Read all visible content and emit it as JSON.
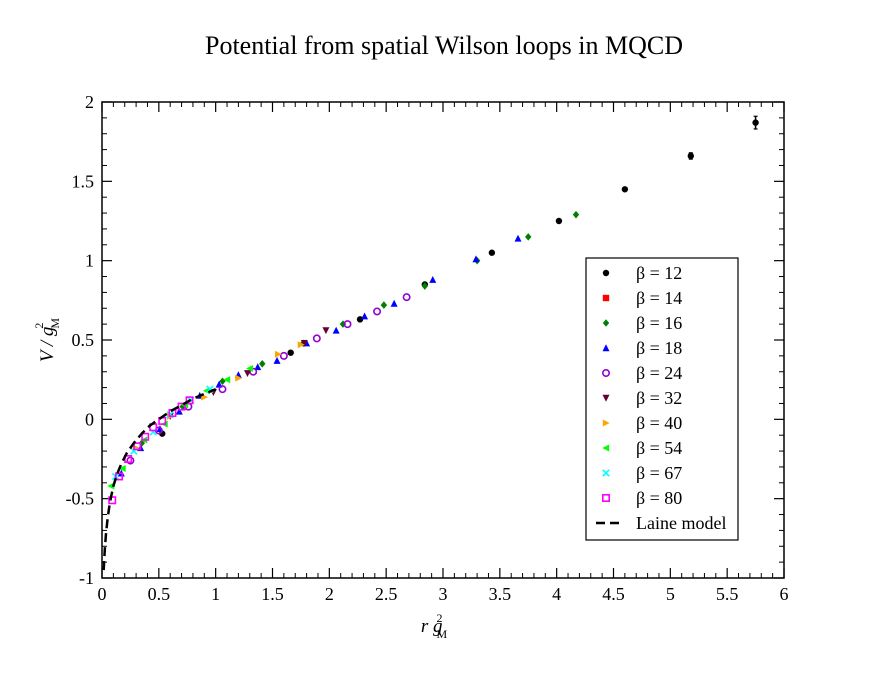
{
  "chart_data": {
    "type": "scatter",
    "title": "Potential from spatial Wilson loops in MQCD",
    "xlabel": {
      "main": "r g",
      "sup": "2",
      "sub": "M"
    },
    "ylabel": {
      "main": "V / g",
      "sup": "2",
      "sub": "M"
    },
    "xlim": [
      0,
      6
    ],
    "ylim": [
      -1,
      2
    ],
    "xticks": [
      0,
      0.5,
      1,
      1.5,
      2,
      2.5,
      3,
      3.5,
      4,
      4.5,
      5,
      5.5,
      6
    ],
    "xtick_labels": [
      "0",
      "0.5",
      "1",
      "1.5",
      "2",
      "2.5",
      "3",
      "3.5",
      "4",
      "4.5",
      "5",
      "5.5",
      "6"
    ],
    "yticks": [
      -1,
      -0.5,
      0,
      0.5,
      1,
      1.5,
      2
    ],
    "ytick_labels": [
      "-1",
      "-0.5",
      "0",
      "0.5",
      "1",
      "1.5",
      "2"
    ],
    "legend_position": "right",
    "series": [
      {
        "name": "β = 12",
        "marker": "circle",
        "color": "#000000",
        "points": [
          [
            0.53,
            -0.09
          ],
          [
            1.66,
            0.42
          ],
          [
            2.27,
            0.63
          ],
          [
            2.84,
            0.85
          ],
          [
            3.43,
            1.05
          ],
          [
            4.02,
            1.25
          ],
          [
            4.6,
            1.45
          ],
          [
            5.18,
            1.66
          ],
          [
            5.75,
            1.87
          ]
        ],
        "errors": [
          0,
          0,
          0,
          0,
          0,
          0,
          0,
          0.02,
          0.04
        ]
      },
      {
        "name": "β = 14",
        "marker": "square",
        "color": "#ff0000",
        "points": []
      },
      {
        "name": "β = 16",
        "marker": "diamond",
        "color": "#008000",
        "points": [
          [
            0.35,
            -0.15
          ],
          [
            0.71,
            0.08
          ],
          [
            1.06,
            0.24
          ],
          [
            1.41,
            0.35
          ],
          [
            1.77,
            0.48
          ],
          [
            2.12,
            0.6
          ],
          [
            2.48,
            0.72
          ],
          [
            2.84,
            0.84
          ],
          [
            3.3,
            1.0
          ],
          [
            3.75,
            1.15
          ],
          [
            4.17,
            1.29
          ]
        ]
      },
      {
        "name": "β = 18",
        "marker": "triangle-up",
        "color": "#0000ff",
        "points": [
          [
            0.17,
            -0.34
          ],
          [
            0.34,
            -0.18
          ],
          [
            0.51,
            -0.06
          ],
          [
            0.68,
            0.05
          ],
          [
            0.86,
            0.15
          ],
          [
            1.03,
            0.22
          ],
          [
            1.2,
            0.28
          ],
          [
            1.37,
            0.33
          ],
          [
            1.54,
            0.37
          ],
          [
            1.8,
            0.48
          ],
          [
            2.06,
            0.56
          ],
          [
            2.31,
            0.65
          ],
          [
            2.57,
            0.73
          ],
          [
            2.91,
            0.88
          ],
          [
            3.29,
            1.01
          ],
          [
            3.66,
            1.14
          ]
        ]
      },
      {
        "name": "β = 24",
        "marker": "circle-open",
        "color": "#9400d3",
        "points": [
          [
            0.25,
            -0.26
          ],
          [
            0.5,
            -0.07
          ],
          [
            0.76,
            0.08
          ],
          [
            1.06,
            0.19
          ],
          [
            1.33,
            0.3
          ],
          [
            1.6,
            0.4
          ],
          [
            1.89,
            0.51
          ],
          [
            2.16,
            0.6
          ],
          [
            2.42,
            0.68
          ],
          [
            2.68,
            0.77
          ]
        ]
      },
      {
        "name": "β = 32",
        "marker": "triangle-down",
        "color": "#660033",
        "points": [
          [
            0.6,
            0.02
          ],
          [
            0.98,
            0.17
          ],
          [
            1.28,
            0.29
          ],
          [
            1.78,
            0.48
          ],
          [
            1.97,
            0.56
          ]
        ]
      },
      {
        "name": "β = 40",
        "marker": "triangle-right",
        "color": "#ffa500",
        "points": [
          [
            0.3,
            -0.18
          ],
          [
            0.6,
            0.02
          ],
          [
            0.9,
            0.14
          ],
          [
            1.2,
            0.26
          ],
          [
            1.55,
            0.41
          ],
          [
            1.75,
            0.47
          ]
        ]
      },
      {
        "name": "β = 54",
        "marker": "triangle-left",
        "color": "#00ff00",
        "points": [
          [
            0.08,
            -0.42
          ],
          [
            0.18,
            -0.31
          ],
          [
            0.37,
            -0.13
          ],
          [
            0.55,
            -0.03
          ],
          [
            0.73,
            0.09
          ],
          [
            0.92,
            0.18
          ],
          [
            1.1,
            0.25
          ],
          [
            1.3,
            0.32
          ]
        ]
      },
      {
        "name": "β = 67",
        "marker": "x",
        "color": "#00ffff",
        "points": [
          [
            0.12,
            -0.36
          ],
          [
            0.28,
            -0.2
          ],
          [
            0.45,
            -0.08
          ],
          [
            0.6,
            0.03
          ],
          [
            0.78,
            0.12
          ],
          [
            0.95,
            0.19
          ]
        ]
      },
      {
        "name": "β = 80",
        "marker": "square-open",
        "color": "#ff00ff",
        "points": [
          [
            0.09,
            -0.51
          ],
          [
            0.15,
            -0.36
          ],
          [
            0.23,
            -0.25
          ],
          [
            0.31,
            -0.17
          ],
          [
            0.38,
            -0.11
          ],
          [
            0.45,
            -0.05
          ],
          [
            0.53,
            -0.01
          ],
          [
            0.62,
            0.04
          ],
          [
            0.7,
            0.08
          ],
          [
            0.77,
            0.12
          ]
        ]
      },
      {
        "name": "Laine model",
        "marker": "line-dashed",
        "color": "#000000",
        "points": [
          [
            0.015,
            -0.95
          ],
          [
            0.025,
            -0.82
          ],
          [
            0.035,
            -0.72
          ],
          [
            0.05,
            -0.62
          ],
          [
            0.07,
            -0.52
          ],
          [
            0.1,
            -0.42
          ],
          [
            0.13,
            -0.35
          ],
          [
            0.17,
            -0.28
          ],
          [
            0.22,
            -0.21
          ],
          [
            0.28,
            -0.15
          ],
          [
            0.35,
            -0.09
          ],
          [
            0.42,
            -0.04
          ],
          [
            0.5,
            0.0
          ],
          [
            0.6,
            0.05
          ],
          [
            0.7,
            0.09
          ],
          [
            0.8,
            0.13
          ],
          [
            0.9,
            0.16
          ],
          [
            1.0,
            0.19
          ]
        ]
      }
    ]
  }
}
